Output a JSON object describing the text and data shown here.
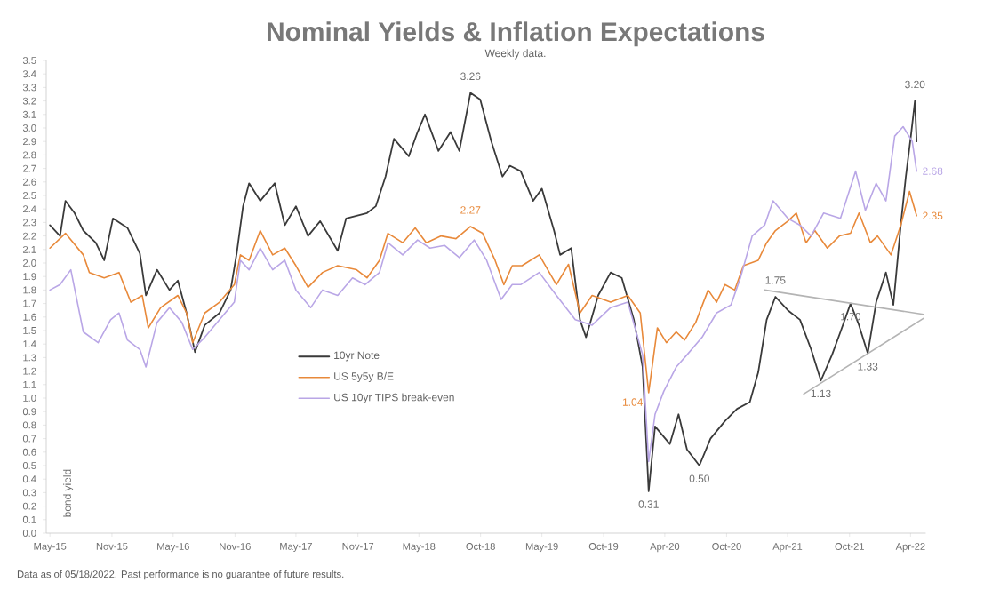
{
  "chart_data": {
    "type": "line",
    "title": "Nominal Yields & Inflation Expectations",
    "subtitle": "Weekly data.",
    "ylabel": "bond yield",
    "xlim": [
      "2015-04-20",
      "2022-06-14"
    ],
    "ylim": [
      0,
      3.5
    ],
    "xticks": [
      {
        "value": "2015-05-01",
        "label": "May-15"
      },
      {
        "value": "2015-11-01",
        "label": "Nov-15"
      },
      {
        "value": "2016-05-01",
        "label": "May-16"
      },
      {
        "value": "2016-11-01",
        "label": "Nov-16"
      },
      {
        "value": "2017-05-01",
        "label": "May-17"
      },
      {
        "value": "2017-11-01",
        "label": "Nov-17"
      },
      {
        "value": "2018-05-01",
        "label": "May-18"
      },
      {
        "value": "2018-10-31",
        "label": "Oct-18"
      },
      {
        "value": "2019-05-01",
        "label": "May-19"
      },
      {
        "value": "2019-10-31",
        "label": "Oct-19"
      },
      {
        "value": "2020-04-30",
        "label": "Apr-20"
      },
      {
        "value": "2020-10-31",
        "label": "Oct-20"
      },
      {
        "value": "2021-04-30",
        "label": "Apr-21"
      },
      {
        "value": "2021-10-31",
        "label": "Oct-21"
      },
      {
        "value": "2022-04-30",
        "label": "Apr-22"
      }
    ],
    "yticks": [
      {
        "value": 0,
        "label": "0.0"
      },
      0.1,
      0.2,
      0.3,
      0.4,
      0.5,
      0.6,
      0.7,
      0.8,
      0.9,
      {
        "value": 1,
        "label": "1.0"
      },
      1.1,
      1.2,
      1.3,
      1.4,
      1.5,
      1.6,
      1.7,
      1.8,
      1.9,
      {
        "value": 2,
        "label": "2.0"
      },
      2.1,
      2.2,
      2.3,
      2.4,
      2.5,
      2.6,
      2.7,
      2.8,
      2.9,
      {
        "value": 3,
        "label": "3.0"
      },
      3.1,
      3.2,
      3.3,
      3.4,
      3.5
    ],
    "legend": "bottom",
    "grid": false,
    "series": [
      {
        "name": "10yr Note",
        "color": "#3a3a3a",
        "x": [
          "2015-05-01",
          "2015-05-31",
          "2015-06-16",
          "2015-07-13",
          "2015-08-08",
          "2015-09-14",
          "2015-10-09",
          "2015-11-04",
          "2015-12-17",
          "2016-01-23",
          "2016-02-10",
          "2016-03-14",
          "2016-04-20",
          "2016-05-15",
          "2016-06-10",
          "2016-07-05",
          "2016-08-03",
          "2016-09-16",
          "2016-10-19",
          "2016-11-06",
          "2016-11-25",
          "2016-12-13",
          "2017-01-15",
          "2017-02-27",
          "2017-03-29",
          "2017-05-01",
          "2017-06-06",
          "2017-07-12",
          "2017-09-02",
          "2017-09-27",
          "2017-11-28",
          "2017-12-24",
          "2018-01-22",
          "2018-02-16",
          "2018-04-01",
          "2018-04-27",
          "2018-05-19",
          "2018-06-28",
          "2018-08-03",
          "2018-08-29",
          "2018-10-01",
          "2018-10-30",
          "2018-12-02",
          "2019-01-04",
          "2019-01-26",
          "2019-02-27",
          "2019-04-05",
          "2019-05-01",
          "2019-06-06",
          "2019-06-24",
          "2019-07-27",
          "2019-08-22",
          "2019-09-09",
          "2019-10-15",
          "2019-11-21",
          "2019-12-24",
          "2020-01-29",
          "2020-02-24",
          "2020-03-13",
          "2020-04-01",
          "2020-05-15",
          "2020-06-10",
          "2020-07-05",
          "2020-08-11",
          "2020-09-13",
          "2020-10-26",
          "2020-12-01",
          "2021-01-08",
          "2021-02-02",
          "2021-02-27",
          "2021-03-25",
          "2021-05-01",
          "2021-06-06",
          "2021-07-09",
          "2021-08-07",
          "2021-09-09",
          "2021-10-04",
          "2021-11-03",
          "2021-11-28",
          "2021-12-24",
          "2022-01-18",
          "2022-02-16",
          "2022-03-10",
          "2022-04-01",
          "2022-04-16",
          "2022-05-01",
          "2022-05-13",
          "2022-05-18"
        ],
        "values": [
          2.28,
          2.2,
          2.46,
          2.37,
          2.24,
          2.15,
          2.02,
          2.33,
          2.26,
          2.07,
          1.76,
          1.95,
          1.8,
          1.87,
          1.63,
          1.34,
          1.54,
          1.63,
          1.8,
          2.07,
          2.42,
          2.59,
          2.46,
          2.59,
          2.28,
          2.42,
          2.2,
          2.31,
          2.09,
          2.33,
          2.37,
          2.42,
          2.64,
          2.92,
          2.79,
          2.97,
          3.1,
          2.83,
          2.97,
          2.83,
          3.26,
          3.21,
          2.9,
          2.64,
          2.72,
          2.68,
          2.46,
          2.55,
          2.24,
          2.06,
          2.11,
          1.58,
          1.45,
          1.76,
          1.93,
          1.89,
          1.58,
          1.23,
          0.31,
          0.79,
          0.66,
          0.88,
          0.62,
          0.5,
          0.7,
          0.83,
          0.92,
          0.97,
          1.19,
          1.58,
          1.75,
          1.65,
          1.58,
          1.36,
          1.13,
          1.32,
          1.49,
          1.7,
          1.54,
          1.33,
          1.71,
          1.93,
          1.69,
          2.28,
          2.64,
          2.94,
          3.2,
          2.9
        ]
      },
      {
        "name": "US 5y5y B/E",
        "color": "#e8893a",
        "x": [
          "2015-05-01",
          "2015-06-16",
          "2015-08-08",
          "2015-08-26",
          "2015-10-09",
          "2015-11-22",
          "2015-12-27",
          "2016-01-30",
          "2016-02-17",
          "2016-03-25",
          "2016-05-15",
          "2016-06-10",
          "2016-06-28",
          "2016-08-03",
          "2016-09-16",
          "2016-10-30",
          "2016-11-17",
          "2016-12-13",
          "2017-01-15",
          "2017-02-21",
          "2017-03-29",
          "2017-05-01",
          "2017-06-06",
          "2017-07-19",
          "2017-09-02",
          "2017-10-28",
          "2017-11-28",
          "2018-01-04",
          "2018-01-29",
          "2018-03-14",
          "2018-04-20",
          "2018-05-23",
          "2018-07-06",
          "2018-08-19",
          "2018-10-01",
          "2018-11-06",
          "2018-12-13",
          "2019-01-08",
          "2019-02-02",
          "2019-03-03",
          "2019-04-23",
          "2019-06-13",
          "2019-07-19",
          "2019-08-22",
          "2019-09-27",
          "2019-11-21",
          "2020-01-11",
          "2020-02-17",
          "2020-03-13",
          "2020-04-08",
          "2020-05-05",
          "2020-06-03",
          "2020-06-28",
          "2020-07-31",
          "2020-09-06",
          "2020-10-01",
          "2020-10-26",
          "2020-11-24",
          "2020-12-20",
          "2021-02-02",
          "2021-02-27",
          "2021-03-25",
          "2021-05-01",
          "2021-05-26",
          "2021-06-24",
          "2021-07-20",
          "2021-08-26",
          "2021-10-01",
          "2021-11-03",
          "2021-11-28",
          "2022-01-01",
          "2022-01-22",
          "2022-03-03",
          "2022-04-01",
          "2022-04-27",
          "2022-05-18"
        ],
        "values": [
          2.11,
          2.22,
          2.06,
          1.93,
          1.89,
          1.93,
          1.71,
          1.76,
          1.52,
          1.67,
          1.76,
          1.63,
          1.41,
          1.63,
          1.71,
          1.84,
          2.06,
          2.02,
          2.24,
          2.06,
          2.11,
          1.98,
          1.82,
          1.93,
          1.98,
          1.95,
          1.89,
          2.02,
          2.22,
          2.15,
          2.26,
          2.15,
          2.2,
          2.18,
          2.27,
          2.22,
          2.02,
          1.84,
          1.98,
          1.98,
          2.06,
          1.84,
          1.99,
          1.63,
          1.76,
          1.71,
          1.76,
          1.63,
          1.04,
          1.52,
          1.41,
          1.49,
          1.43,
          1.56,
          1.8,
          1.71,
          1.84,
          1.8,
          1.98,
          2.02,
          2.15,
          2.24,
          2.31,
          2.37,
          2.15,
          2.24,
          2.11,
          2.2,
          2.22,
          2.37,
          2.15,
          2.2,
          2.06,
          2.28,
          2.53,
          2.35
        ]
      },
      {
        "name": "US 10yr TIPS break-even",
        "color": "#b9a6e6",
        "x": [
          "2015-05-01",
          "2015-05-31",
          "2015-07-02",
          "2015-08-08",
          "2015-09-21",
          "2015-10-28",
          "2015-11-22",
          "2015-12-17",
          "2016-01-23",
          "2016-02-10",
          "2016-03-14",
          "2016-04-20",
          "2016-05-27",
          "2016-06-28",
          "2016-08-03",
          "2016-09-16",
          "2016-10-30",
          "2016-11-17",
          "2016-12-13",
          "2017-01-15",
          "2017-02-21",
          "2017-03-29",
          "2017-05-01",
          "2017-06-14",
          "2017-07-19",
          "2017-09-02",
          "2017-10-16",
          "2017-11-22",
          "2018-01-04",
          "2018-01-29",
          "2018-03-14",
          "2018-04-27",
          "2018-06-03",
          "2018-07-16",
          "2018-08-29",
          "2018-10-12",
          "2018-11-18",
          "2018-12-31",
          "2019-02-02",
          "2019-02-27",
          "2019-04-23",
          "2019-06-13",
          "2019-08-08",
          "2019-09-27",
          "2019-11-21",
          "2020-01-11",
          "2020-02-24",
          "2020-03-13",
          "2020-04-01",
          "2020-04-27",
          "2020-06-03",
          "2020-07-05",
          "2020-08-19",
          "2020-10-01",
          "2020-11-13",
          "2020-12-11",
          "2021-01-15",
          "2021-02-21",
          "2021-03-18",
          "2021-05-01",
          "2021-06-06",
          "2021-07-09",
          "2021-08-15",
          "2021-10-04",
          "2021-11-18",
          "2021-12-17",
          "2022-01-18",
          "2022-02-16",
          "2022-03-14",
          "2022-04-08",
          "2022-05-05",
          "2022-05-18"
        ],
        "values": [
          1.8,
          1.84,
          1.95,
          1.49,
          1.41,
          1.58,
          1.63,
          1.43,
          1.36,
          1.23,
          1.56,
          1.67,
          1.56,
          1.36,
          1.45,
          1.58,
          1.71,
          2.02,
          1.95,
          2.11,
          1.95,
          2.02,
          1.8,
          1.67,
          1.8,
          1.76,
          1.89,
          1.84,
          1.93,
          2.15,
          2.06,
          2.17,
          2.11,
          2.13,
          2.04,
          2.17,
          2.02,
          1.73,
          1.84,
          1.84,
          1.93,
          1.76,
          1.58,
          1.54,
          1.67,
          1.71,
          1.32,
          0.53,
          0.88,
          1.05,
          1.23,
          1.32,
          1.45,
          1.63,
          1.69,
          1.89,
          2.2,
          2.28,
          2.46,
          2.33,
          2.28,
          2.2,
          2.37,
          2.33,
          2.68,
          2.39,
          2.59,
          2.46,
          2.94,
          3.01,
          2.9,
          2.68
        ]
      },
      {
        "type": "line",
        "color": "#b4b4b4",
        "x": [
          "2021-02-21",
          "2022-06-07"
        ],
        "values": [
          1.8,
          1.62
        ]
      },
      {
        "type": "line",
        "color": "#b4b4b4",
        "x": [
          "2021-06-17",
          "2022-06-07"
        ],
        "values": [
          1.03,
          1.59
        ]
      }
    ],
    "annotations": [
      {
        "text": "3.26",
        "x": "2018-10-01",
        "y": 3.26
      },
      {
        "text": "2.27",
        "x": "2018-10-01",
        "y": 2.27
      },
      {
        "text": "0.31",
        "x": "2020-03-13",
        "y": 0.31
      },
      {
        "text": "0.50",
        "x": "2020-08-11",
        "y": 0.5
      },
      {
        "text": "1.04",
        "x": "2020-03-13",
        "y": 1.04
      },
      {
        "text": "1.75",
        "x": "2021-03-25",
        "y": 1.75
      },
      {
        "text": "1.13",
        "x": "2021-08-07",
        "y": 1.13
      },
      {
        "text": "1.70",
        "x": "2021-11-03",
        "y": 1.7
      },
      {
        "text": "1.33",
        "x": "2021-12-24",
        "y": 1.33
      },
      {
        "text": "3.20",
        "x": "2022-05-13",
        "y": 3.2
      },
      {
        "text": "2.68",
        "x": "2022-05-18",
        "y": 2.68
      },
      {
        "text": "2.35",
        "x": "2022-05-18",
        "y": 2.35
      },
      "Data as of 05/18/2022. Past performance is no guarantee of future results."
    ]
  }
}
